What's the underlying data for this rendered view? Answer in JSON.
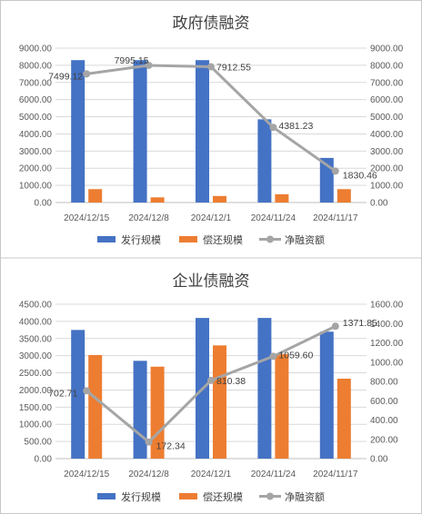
{
  "chart_data": [
    {
      "type": "bar",
      "title": "政府债融资",
      "categories": [
        "2024/12/15",
        "2024/12/8",
        "2024/12/1",
        "2024/11/24",
        "2024/11/17"
      ],
      "series": [
        {
          "name": "发行规模",
          "type": "bar",
          "axis": "left",
          "color": "#4472C4",
          "values": [
            8300,
            8300,
            8300,
            4850,
            2600
          ]
        },
        {
          "name": "偿还规模",
          "type": "bar",
          "axis": "left",
          "color": "#ED7D31",
          "values": [
            780,
            300,
            380,
            480,
            780
          ]
        },
        {
          "name": "净融资额",
          "type": "line",
          "axis": "right",
          "color": "#A5A5A5",
          "values": [
            7499.12,
            7995.15,
            7912.55,
            4381.23,
            1830.46
          ],
          "labels": [
            "7499.12",
            "7995.15",
            "7912.55",
            "4381.23",
            "1830.46"
          ]
        }
      ],
      "left_axis": {
        "min": 0,
        "max": 9000,
        "step": 1000,
        "tick_labels": [
          "0.00",
          "1000.00",
          "2000.00",
          "3000.00",
          "4000.00",
          "5000.00",
          "6000.00",
          "7000.00",
          "8000.00",
          "9000.00"
        ]
      },
      "right_axis": {
        "min": 0,
        "max": 9000,
        "step": 1000,
        "tick_labels": [
          "0.00",
          "1000.00",
          "2000.00",
          "3000.00",
          "4000.00",
          "5000.00",
          "6000.00",
          "7000.00",
          "8000.00",
          "9000.00"
        ]
      },
      "grid": true,
      "legend_position": "bottom"
    },
    {
      "type": "bar",
      "title": "企业债融资",
      "categories": [
        "2024/12/15",
        "2024/12/8",
        "2024/12/1",
        "2024/11/24",
        "2024/11/17"
      ],
      "series": [
        {
          "name": "发行规模",
          "type": "bar",
          "axis": "left",
          "color": "#4472C4",
          "values": [
            3750,
            2850,
            4100,
            4100,
            3700
          ]
        },
        {
          "name": "偿还规模",
          "type": "bar",
          "axis": "left",
          "color": "#ED7D31",
          "values": [
            3020,
            2680,
            3300,
            3050,
            2330
          ]
        },
        {
          "name": "净融资额",
          "type": "line",
          "axis": "right",
          "color": "#A5A5A5",
          "values": [
            702.71,
            172.34,
            810.38,
            1059.6,
            1371.85
          ],
          "labels": [
            "702.71",
            "172.34",
            "810.38",
            "1059.60",
            "1371.85"
          ]
        }
      ],
      "left_axis": {
        "min": 0,
        "max": 4500,
        "step": 500,
        "tick_labels": [
          "0.00",
          "500.00",
          "1000.00",
          "1500.00",
          "2000.00",
          "2500.00",
          "3000.00",
          "3500.00",
          "4000.00",
          "4500.00"
        ]
      },
      "right_axis": {
        "min": 0,
        "max": 1600,
        "step": 200,
        "tick_labels": [
          "0.00",
          "200.00",
          "400.00",
          "600.00",
          "800.00",
          "1000.00",
          "1200.00",
          "1400.00",
          "1600.00"
        ]
      },
      "grid": true,
      "legend_position": "bottom"
    }
  ]
}
